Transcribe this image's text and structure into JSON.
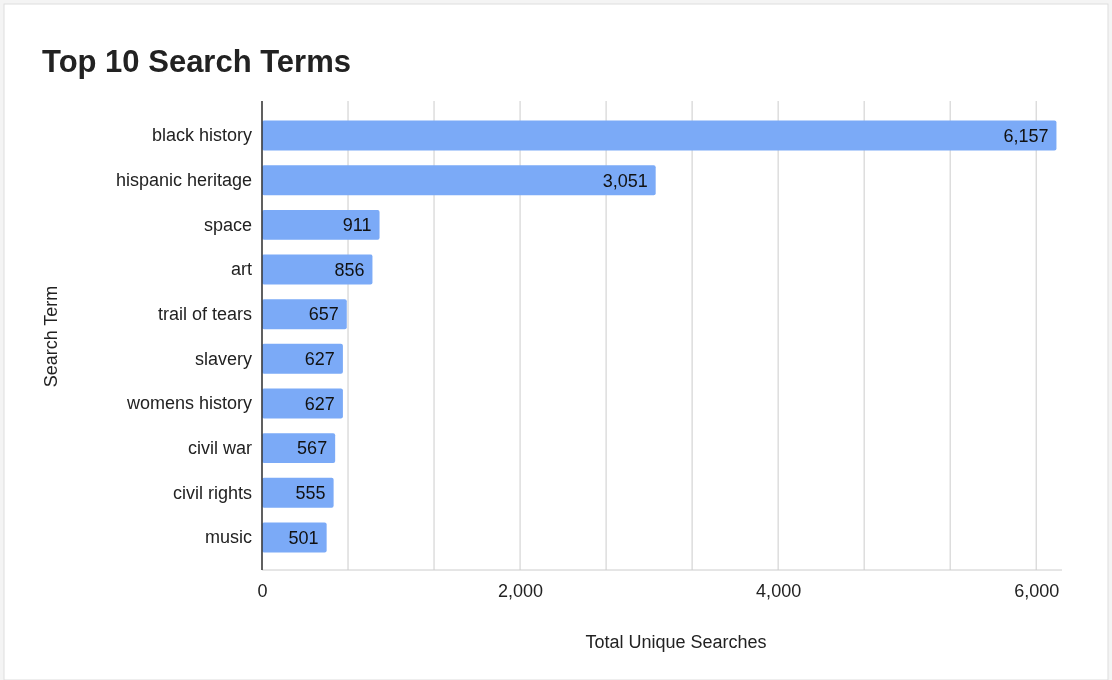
{
  "chart_data": {
    "type": "bar",
    "orientation": "horizontal",
    "title": "Top 10 Search Terms",
    "xlabel": "Total Unique Searches",
    "ylabel": "Search Term",
    "categories": [
      "black history",
      "hispanic heritage",
      "space",
      "art",
      "trail of tears",
      "slavery",
      "womens history",
      "civil war",
      "civil rights",
      "music"
    ],
    "values": [
      6157,
      3051,
      911,
      856,
      657,
      627,
      627,
      567,
      555,
      501
    ],
    "color": "#7baaf7",
    "xlim": [
      0,
      6200
    ],
    "xticks": [
      0,
      {
        "value": 666.67,
        "label": null
      },
      {
        "value": 1333.33,
        "label": null
      },
      {
        "value": 2000,
        "label": "2,000"
      },
      {
        "value": 2666.67,
        "label": null
      },
      {
        "value": 3333.33,
        "label": null
      },
      {
        "value": 4000,
        "label": "4,000"
      },
      {
        "value": 4666.67,
        "label": null
      },
      {
        "value": 5333.33,
        "label": null
      },
      {
        "value": 6000,
        "label": "6,000"
      }
    ],
    "value_labels": [
      "6,157",
      "3,051",
      "911",
      "856",
      "657",
      "627",
      "627",
      "567",
      "555",
      "501"
    ],
    "grid": "x"
  }
}
